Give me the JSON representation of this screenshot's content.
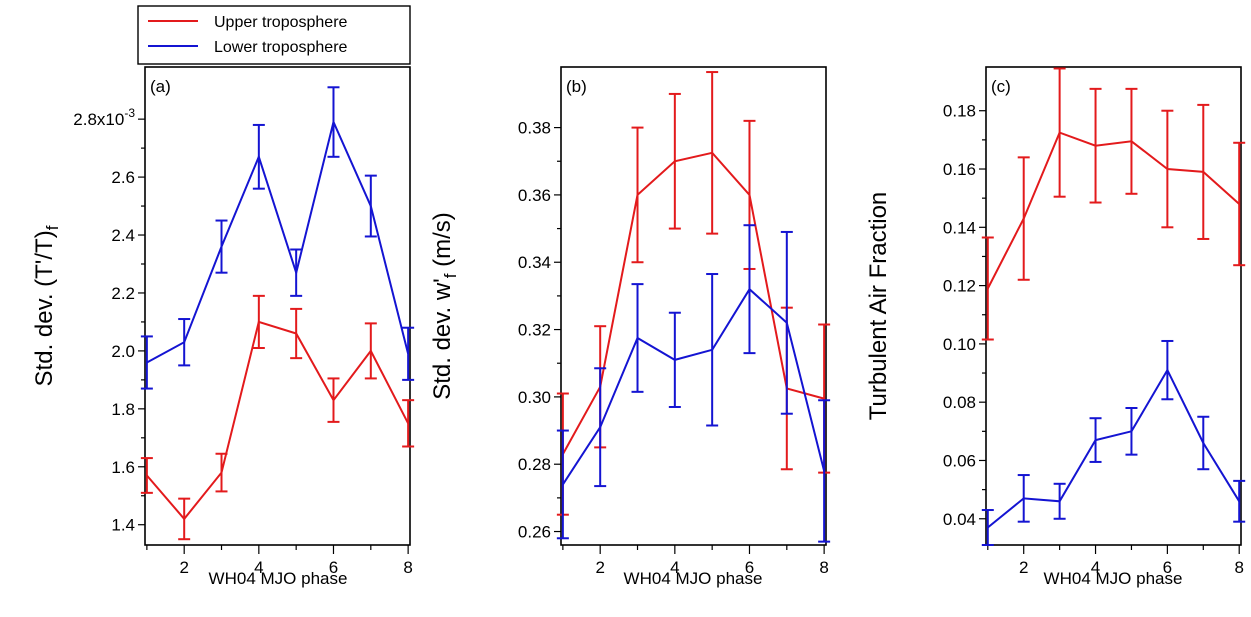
{
  "legend": {
    "entries": [
      {
        "label": "Upper troposphere",
        "color": "#e31a1c"
      },
      {
        "label": "Lower troposphere",
        "color": "#1414d2"
      }
    ]
  },
  "chart_data": [
    {
      "type": "line",
      "panel": "(a)",
      "xlabel": "WH04 MJO phase",
      "ylabel": "Std. dev. (T'/T)f",
      "x": [
        1,
        2,
        3,
        4,
        5,
        6,
        7,
        8
      ],
      "xticks": [
        2,
        4,
        6,
        8
      ],
      "xlim": [
        0.95,
        8.05
      ],
      "ylim": [
        1.33,
        2.98
      ],
      "yticks": [
        1.4,
        1.6,
        1.8,
        2.0,
        2.2,
        2.4,
        2.6,
        2.8
      ],
      "ytick_labels": [
        "1.4",
        "1.6",
        "1.8",
        "2.0",
        "2.2",
        "2.4",
        "2.6",
        "2.8x10"
      ],
      "ytick_exponent": "-3",
      "series": [
        {
          "name": "Upper troposphere",
          "color": "#e31a1c",
          "values": [
            1.57,
            1.42,
            1.58,
            2.1,
            2.06,
            1.83,
            2.0,
            1.75
          ],
          "errors": [
            0.06,
            0.07,
            0.065,
            0.09,
            0.085,
            0.075,
            0.095,
            0.08
          ]
        },
        {
          "name": "Lower troposphere",
          "color": "#1414d2",
          "values": [
            1.96,
            2.03,
            2.36,
            2.67,
            2.27,
            2.79,
            2.5,
            1.99
          ],
          "errors": [
            0.09,
            0.08,
            0.09,
            0.11,
            0.08,
            0.12,
            0.105,
            0.09
          ]
        }
      ]
    },
    {
      "type": "line",
      "panel": "(b)",
      "xlabel": "WH04 MJO phase",
      "ylabel": "Std. dev. w'f (m/s)",
      "x": [
        1,
        2,
        3,
        4,
        5,
        6,
        7,
        8
      ],
      "xticks": [
        2,
        4,
        6,
        8
      ],
      "xlim": [
        0.95,
        8.05
      ],
      "ylim": [
        0.256,
        0.398
      ],
      "yticks": [
        0.26,
        0.28,
        0.3,
        0.32,
        0.34,
        0.36,
        0.38
      ],
      "ytick_labels": [
        "0.26",
        "0.28",
        "0.30",
        "0.32",
        "0.34",
        "0.36",
        "0.38"
      ],
      "series": [
        {
          "name": "Upper troposphere",
          "color": "#e31a1c",
          "values": [
            0.283,
            0.303,
            0.36,
            0.37,
            0.3725,
            0.36,
            0.3025,
            0.2995
          ],
          "errors": [
            0.018,
            0.018,
            0.02,
            0.02,
            0.024,
            0.022,
            0.024,
            0.022
          ]
        },
        {
          "name": "Lower troposphere",
          "color": "#1414d2",
          "values": [
            0.274,
            0.291,
            0.3175,
            0.311,
            0.314,
            0.332,
            0.322,
            0.278
          ],
          "errors": [
            0.016,
            0.0175,
            0.016,
            0.014,
            0.0225,
            0.019,
            0.027,
            0.021
          ]
        }
      ]
    },
    {
      "type": "line",
      "panel": "(c)",
      "xlabel": "WH04 MJO phase",
      "ylabel": "Turbulent Air Fraction",
      "x": [
        1,
        2,
        3,
        4,
        5,
        6,
        7,
        8
      ],
      "xticks": [
        2,
        4,
        6,
        8
      ],
      "xlim": [
        0.95,
        8.05
      ],
      "ylim": [
        0.031,
        0.195
      ],
      "yticks": [
        0.04,
        0.06,
        0.08,
        0.1,
        0.12,
        0.14,
        0.16,
        0.18
      ],
      "ytick_labels": [
        "0.04",
        "0.06",
        "0.08",
        "0.10",
        "0.12",
        "0.14",
        "0.16",
        "0.18"
      ],
      "series": [
        {
          "name": "Upper troposphere",
          "color": "#e31a1c",
          "values": [
            0.119,
            0.143,
            0.1725,
            0.168,
            0.1695,
            0.16,
            0.159,
            0.148
          ],
          "errors": [
            0.0175,
            0.021,
            0.022,
            0.0195,
            0.018,
            0.02,
            0.023,
            0.021
          ]
        },
        {
          "name": "Lower troposphere",
          "color": "#1414d2",
          "values": [
            0.037,
            0.047,
            0.046,
            0.067,
            0.07,
            0.091,
            0.066,
            0.046
          ],
          "errors": [
            0.006,
            0.008,
            0.006,
            0.0075,
            0.008,
            0.01,
            0.009,
            0.007
          ]
        }
      ]
    }
  ]
}
